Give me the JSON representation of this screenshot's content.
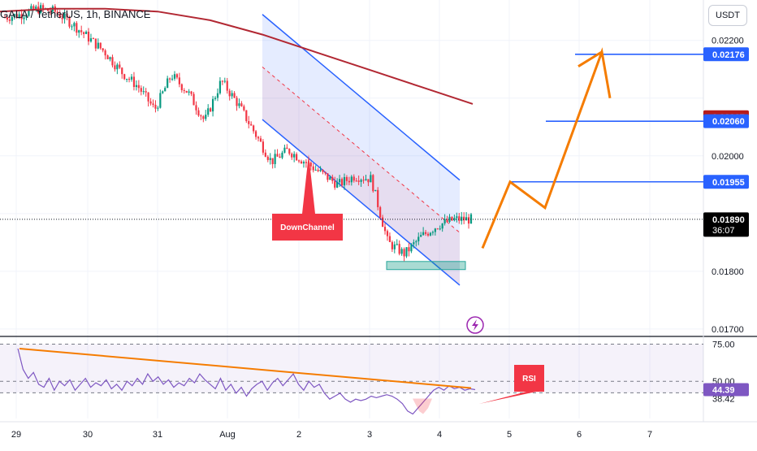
{
  "header": {
    "title": "GALA / TetherUS, 1h, BINANCE",
    "currency": "USDT"
  },
  "colors": {
    "up": "#089981",
    "down": "#f23645",
    "ma": "#b22833",
    "channel": "#2962ff",
    "projection": "#f57c00",
    "rsi": "#7e57c2",
    "level": "#2962ff",
    "price_tag": "#000000",
    "red_tag": "#b71c1c"
  },
  "chart_data": [
    {
      "type": "candlestick",
      "title": "",
      "x_ticks": [
        "29",
        "30",
        "31",
        "Aug",
        "2",
        "3",
        "4",
        "5",
        "6",
        "7"
      ],
      "y_ticks": [
        "0.01700",
        "0.01800",
        "0.02000",
        "0.02200"
      ],
      "ylim": [
        0.0169,
        0.0227
      ],
      "series": [
        {
          "name": "price",
          "close_path": [
            0.0224,
            0.02245,
            0.02255,
            0.0225,
            0.0223,
            0.02205,
            0.0218,
            0.02145,
            0.0212,
            0.0208,
            0.0214,
            0.0211,
            0.0206,
            0.0213,
            0.0209,
            0.0204,
            0.0199,
            0.0201,
            0.0199,
            0.0197,
            0.0195,
            0.01965,
            0.0196,
            0.0185,
            0.0183,
            0.0186,
            0.0188,
            0.0189,
            0.0189
          ]
        },
        {
          "name": "moving average",
          "path": [
            0.0225,
            0.02255,
            0.02255,
            0.0225,
            0.02235,
            0.0221,
            0.0218,
            0.0215,
            0.0212,
            0.0209
          ]
        }
      ],
      "annotations": [
        {
          "label": "DownChannel",
          "kind": "callout"
        },
        {
          "kind": "descending channel"
        },
        {
          "kind": "support zone",
          "from": 0.01803,
          "to": 0.01817
        },
        {
          "kind": "projected path",
          "points": [
            0.0184,
            0.01955,
            0.0191,
            0.0218,
            0.021
          ]
        }
      ],
      "price_levels": [
        {
          "value": "0.02176",
          "style": "blue"
        },
        {
          "value": "0.02067",
          "style": "red"
        },
        {
          "value": "0.02060",
          "style": "blue"
        },
        {
          "value": "0.01955",
          "style": "blue"
        },
        {
          "value": "0.01890",
          "style": "black",
          "countdown": "36:07"
        }
      ]
    },
    {
      "type": "line",
      "title": "",
      "y_ticks": [
        "75.00",
        "50.00",
        "42.26",
        "38.42"
      ],
      "ylim": [
        25,
        78
      ],
      "current_value": "44.39",
      "series": [
        {
          "name": "RSI",
          "values": [
            72,
            58,
            52,
            56,
            48,
            46,
            52,
            44,
            50,
            47,
            51,
            44,
            48,
            52,
            46,
            49,
            47,
            51,
            45,
            48,
            44,
            50,
            47,
            52,
            48,
            55,
            50,
            53,
            48,
            51,
            46,
            49,
            47,
            52,
            49,
            55,
            51,
            48,
            45,
            52,
            44,
            48,
            42,
            46,
            40,
            45,
            48,
            50,
            44,
            49,
            52,
            47,
            51,
            55,
            48,
            44,
            50,
            46,
            48,
            42,
            38,
            40,
            42,
            38,
            36,
            38,
            37,
            38,
            40,
            39,
            40,
            41,
            40,
            38,
            35,
            30,
            28,
            32,
            36,
            40,
            44,
            46,
            44,
            47,
            45,
            46,
            44,
            45,
            44.4
          ]
        }
      ],
      "annotations": [
        {
          "label": "RSI",
          "kind": "callout"
        },
        {
          "kind": "trendline"
        }
      ]
    }
  ]
}
